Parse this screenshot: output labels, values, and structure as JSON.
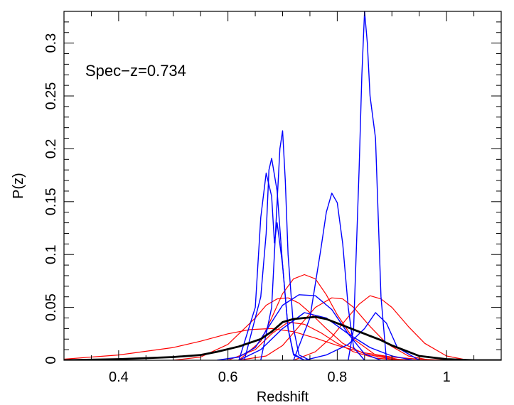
{
  "chart_data": {
    "type": "line",
    "title": "",
    "xlabel": "Redshift",
    "ylabel": "P(z)",
    "xlim": [
      0.3,
      1.1
    ],
    "ylim": [
      0,
      0.33
    ],
    "grid": false,
    "legend": "none",
    "annotation": "Spec−z=0.734",
    "x_ticks": [
      {
        "value": 0.4,
        "label": "0.4"
      },
      {
        "value": 0.6,
        "label": "0.6"
      },
      {
        "value": 0.8,
        "label": "0.8"
      },
      {
        "value": 1.0,
        "label": "1"
      }
    ],
    "y_ticks": [
      {
        "value": 0,
        "label": "0"
      },
      {
        "value": 0.05,
        "label": "0.05"
      },
      {
        "value": 0.1,
        "label": "0.1"
      },
      {
        "value": 0.15,
        "label": "0.15"
      },
      {
        "value": 0.2,
        "label": "0.2"
      },
      {
        "value": 0.25,
        "label": "0.25"
      },
      {
        "value": 0.3,
        "label": "0.3"
      }
    ],
    "colors": {
      "red": "#ff0000",
      "blue": "#0000ff",
      "black": "#000000"
    },
    "series": [
      {
        "color": "red",
        "width": 1.2,
        "x": [
          0.3,
          0.4,
          0.5,
          0.55,
          0.6,
          0.64,
          0.68,
          0.72,
          0.76,
          0.8,
          0.85,
          0.9,
          0.95,
          1.0,
          1.1
        ],
        "y": [
          0.001,
          0.005,
          0.012,
          0.018,
          0.025,
          0.029,
          0.03,
          0.027,
          0.021,
          0.014,
          0.007,
          0.003,
          0.001,
          0.0,
          0.0
        ]
      },
      {
        "color": "red",
        "width": 1.2,
        "x": [
          0.5,
          0.55,
          0.6,
          0.63,
          0.65,
          0.67,
          0.69,
          0.71,
          0.73,
          0.75,
          0.78,
          0.81,
          0.85,
          0.9,
          0.95
        ],
        "y": [
          0.0,
          0.003,
          0.015,
          0.03,
          0.04,
          0.052,
          0.058,
          0.059,
          0.054,
          0.045,
          0.03,
          0.016,
          0.006,
          0.001,
          0.0
        ]
      },
      {
        "color": "red",
        "width": 1.2,
        "x": [
          0.62,
          0.66,
          0.68,
          0.7,
          0.72,
          0.74,
          0.76,
          0.78,
          0.8,
          0.83,
          0.87,
          0.92
        ],
        "y": [
          0.0,
          0.018,
          0.04,
          0.063,
          0.077,
          0.081,
          0.077,
          0.062,
          0.043,
          0.02,
          0.005,
          0.0
        ]
      },
      {
        "color": "red",
        "width": 1.2,
        "x": [
          0.62,
          0.67,
          0.7,
          0.73,
          0.76,
          0.79,
          0.81,
          0.83,
          0.86,
          0.89,
          0.93,
          0.97
        ],
        "y": [
          0.0,
          0.004,
          0.014,
          0.032,
          0.05,
          0.059,
          0.058,
          0.05,
          0.032,
          0.016,
          0.004,
          0.0
        ]
      },
      {
        "color": "red",
        "width": 1.2,
        "x": [
          0.72,
          0.76,
          0.79,
          0.82,
          0.84,
          0.86,
          0.88,
          0.9,
          0.93,
          0.96,
          1.0,
          1.04
        ],
        "y": [
          0.0,
          0.008,
          0.022,
          0.041,
          0.053,
          0.061,
          0.058,
          0.05,
          0.032,
          0.016,
          0.004,
          0.0
        ]
      },
      {
        "color": "red",
        "width": 1.2,
        "x": [
          0.6,
          0.65,
          0.68,
          0.71,
          0.74,
          0.77,
          0.8,
          0.83,
          0.87,
          0.92
        ],
        "y": [
          0.0,
          0.01,
          0.025,
          0.036,
          0.034,
          0.026,
          0.016,
          0.008,
          0.002,
          0.0
        ]
      },
      {
        "color": "blue",
        "width": 1.4,
        "x": [
          0.62,
          0.65,
          0.66,
          0.67,
          0.68,
          0.685,
          0.69,
          0.7,
          0.71,
          0.72,
          0.74
        ],
        "y": [
          0.0,
          0.05,
          0.135,
          0.177,
          0.155,
          0.111,
          0.13,
          0.09,
          0.03,
          0.005,
          0.0
        ]
      },
      {
        "color": "blue",
        "width": 1.4,
        "x": [
          0.63,
          0.66,
          0.67,
          0.675,
          0.68,
          0.69,
          0.7,
          0.71,
          0.72,
          0.74
        ],
        "y": [
          0.0,
          0.06,
          0.12,
          0.18,
          0.191,
          0.16,
          0.09,
          0.03,
          0.006,
          0.0
        ]
      },
      {
        "color": "blue",
        "width": 1.4,
        "x": [
          0.66,
          0.68,
          0.69,
          0.695,
          0.7,
          0.705,
          0.71,
          0.72,
          0.73,
          0.75
        ],
        "y": [
          0.0,
          0.05,
          0.15,
          0.2,
          0.217,
          0.17,
          0.1,
          0.03,
          0.005,
          0.0
        ]
      },
      {
        "color": "blue",
        "width": 1.4,
        "x": [
          0.72,
          0.75,
          0.77,
          0.78,
          0.79,
          0.8,
          0.81,
          0.82,
          0.83,
          0.85
        ],
        "y": [
          0.0,
          0.04,
          0.105,
          0.14,
          0.158,
          0.149,
          0.11,
          0.05,
          0.012,
          0.0
        ]
      },
      {
        "color": "blue",
        "width": 1.4,
        "x": [
          0.82,
          0.83,
          0.84,
          0.845,
          0.85,
          0.855,
          0.86,
          0.87,
          0.88,
          0.89
        ],
        "y": [
          0.0,
          0.03,
          0.18,
          0.27,
          0.33,
          0.3,
          0.25,
          0.21,
          0.06,
          0.0
        ]
      },
      {
        "color": "blue",
        "width": 1.4,
        "x": [
          0.58,
          0.62,
          0.65,
          0.68,
          0.7,
          0.73,
          0.76,
          0.79,
          0.82,
          0.85,
          0.88
        ],
        "y": [
          0.0,
          0.003,
          0.012,
          0.036,
          0.052,
          0.062,
          0.061,
          0.048,
          0.025,
          0.006,
          0.0
        ]
      },
      {
        "color": "blue",
        "width": 1.4,
        "x": [
          0.62,
          0.66,
          0.7,
          0.74,
          0.78,
          0.82,
          0.86,
          0.9,
          0.94
        ],
        "y": [
          0.0,
          0.01,
          0.03,
          0.045,
          0.04,
          0.025,
          0.012,
          0.004,
          0.0
        ]
      },
      {
        "color": "blue",
        "width": 1.4,
        "x": [
          0.74,
          0.78,
          0.82,
          0.85,
          0.87,
          0.89,
          0.91,
          0.95
        ],
        "y": [
          0.0,
          0.005,
          0.015,
          0.03,
          0.045,
          0.035,
          0.012,
          0.0
        ]
      },
      {
        "color": "black",
        "width": 2.8,
        "x": [
          0.3,
          0.4,
          0.5,
          0.55,
          0.58,
          0.62,
          0.66,
          0.68,
          0.7,
          0.72,
          0.74,
          0.76,
          0.78,
          0.8,
          0.82,
          0.84,
          0.86,
          0.88,
          0.9,
          0.92,
          0.95,
          1.0,
          1.05,
          1.1
        ],
        "y": [
          0.0,
          0.001,
          0.003,
          0.005,
          0.008,
          0.013,
          0.02,
          0.027,
          0.036,
          0.039,
          0.04,
          0.041,
          0.039,
          0.035,
          0.031,
          0.027,
          0.023,
          0.019,
          0.014,
          0.01,
          0.004,
          0.001,
          0.0,
          0.0
        ]
      }
    ]
  }
}
